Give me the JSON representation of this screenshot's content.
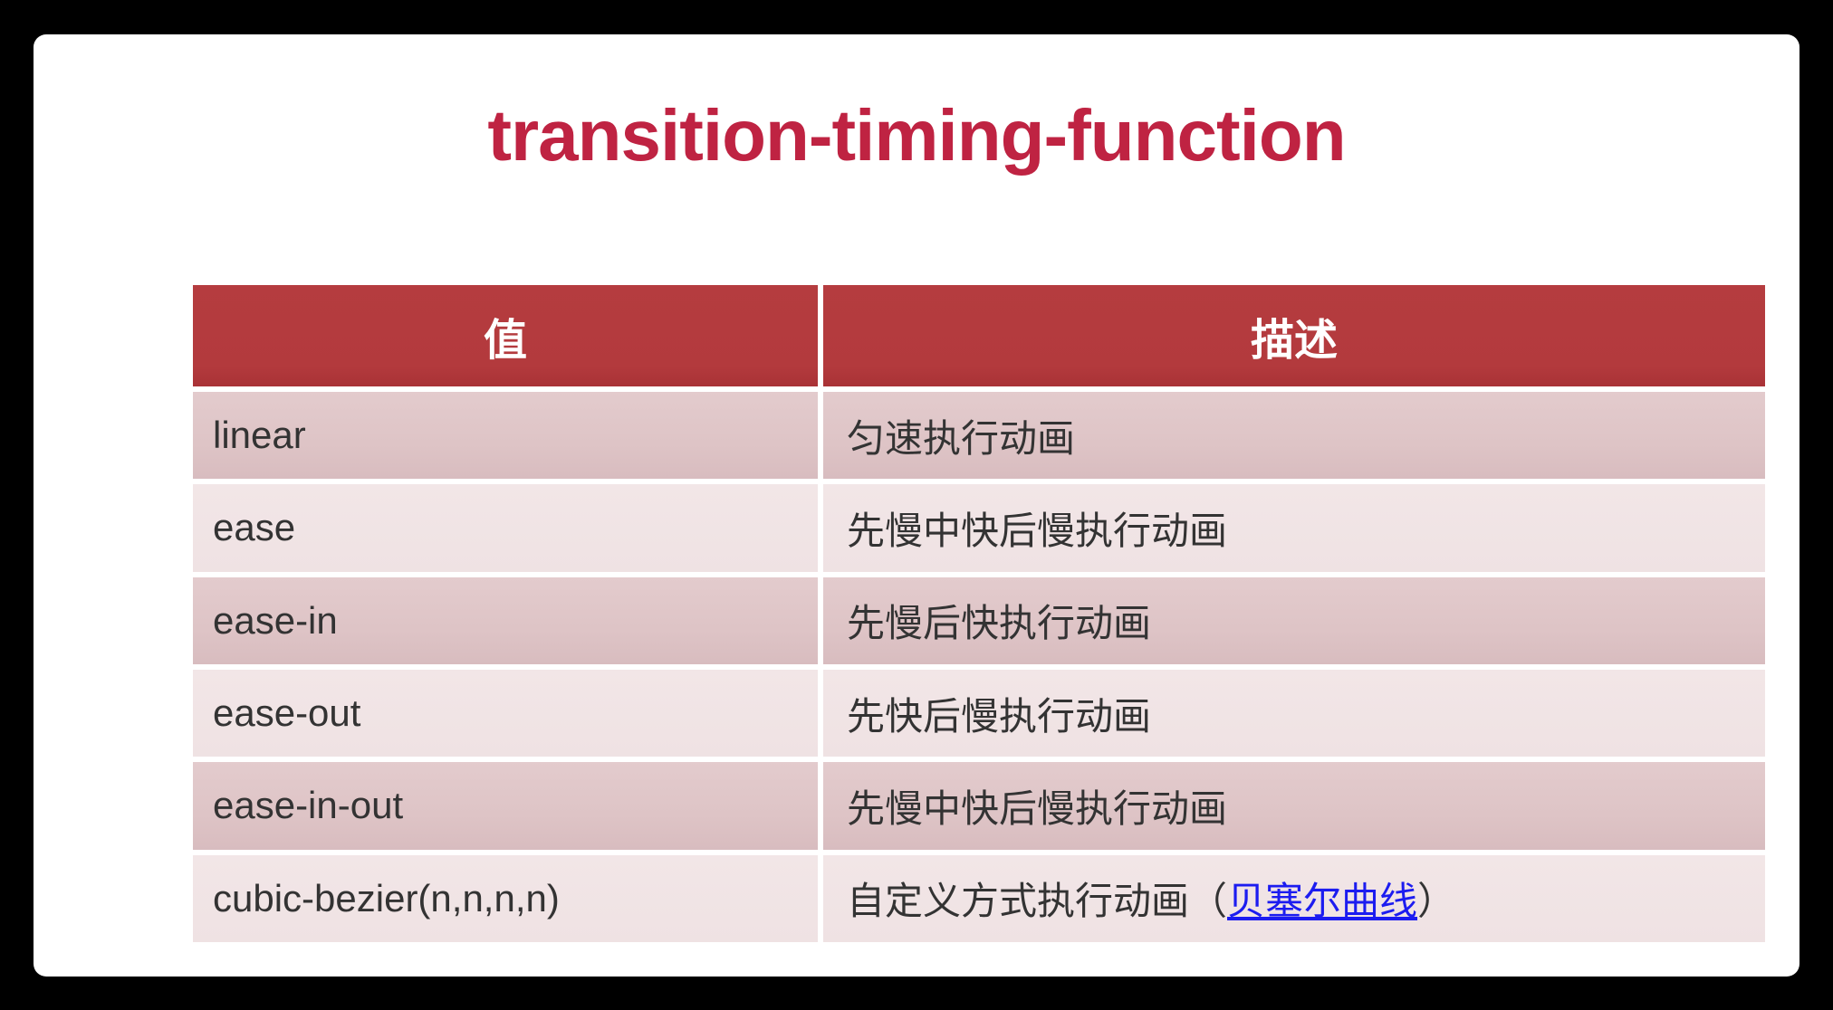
{
  "title": {
    "text": "transition-timing-function",
    "color": "#bf2342"
  },
  "colors": {
    "page_background": "#000000",
    "card_background": "#ffffff",
    "header_background": "#b43b3e",
    "header_text": "#ffffff",
    "row_dark_background": "#dfc5c7",
    "row_light_background": "#f0e3e4",
    "body_text": "#333333",
    "link_blue": "#1c1cf0"
  },
  "table": {
    "headers": {
      "value": "值",
      "description": "描述"
    },
    "rows": [
      {
        "value": "linear",
        "desc": "匀速执行动画"
      },
      {
        "value": "ease",
        "desc": "先慢中快后慢执行动画"
      },
      {
        "value": "ease-in",
        "desc": "先慢后快执行动画"
      },
      {
        "value": "ease-out",
        "desc": "先快后慢执行动画"
      },
      {
        "value": "ease-in-out",
        "desc": "先慢中快后慢执行动画"
      },
      {
        "value": "cubic-bezier(n,n,n,n)",
        "desc_prefix": "自定义方式执行动画（",
        "desc_link": "贝塞尔曲线",
        "desc_suffix": "）"
      }
    ]
  }
}
